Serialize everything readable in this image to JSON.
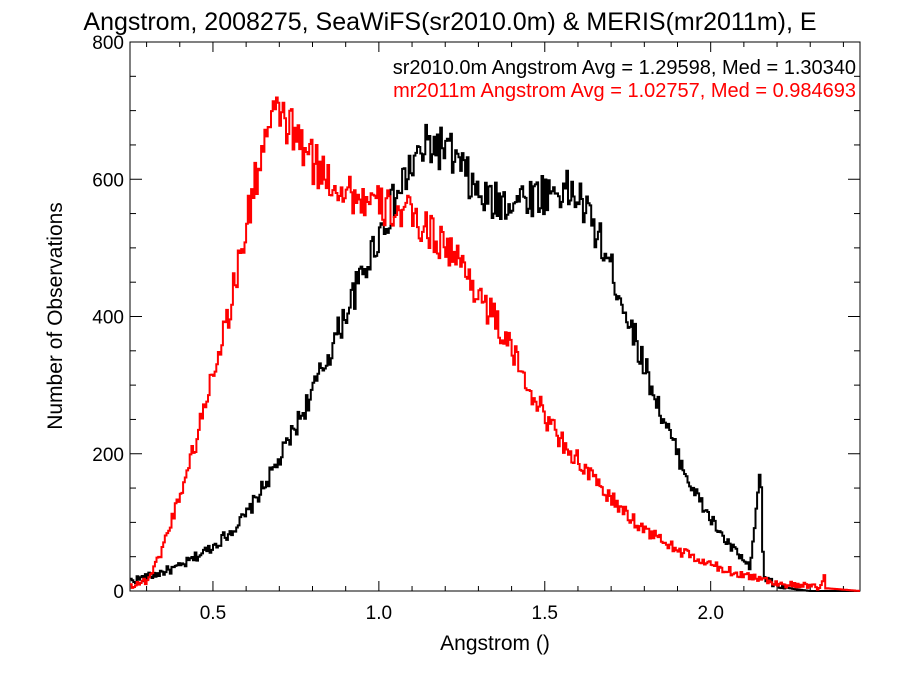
{
  "chart_data": {
    "type": "histogram",
    "title": "Angstrom, 2008275, SeaWiFS(sr2010.0m) & MERIS(mr2011m), E",
    "xlabel": "Angstrom ()",
    "ylabel": "Number of Observations",
    "xlim": [
      0.25,
      2.45
    ],
    "ylim": [
      0,
      800
    ],
    "x_ticks": [
      0.5,
      1.0,
      1.5,
      2.0
    ],
    "x_tick_labels": [
      "0.5",
      "1.0",
      "1.5",
      "2.0"
    ],
    "y_ticks": [
      0,
      200,
      400,
      600,
      800
    ],
    "y_tick_labels": [
      "0",
      "200",
      "400",
      "600",
      "800"
    ],
    "grid": false,
    "legend_position": "top-right",
    "series": [
      {
        "name": "sr2010.0m",
        "annotation": "sr2010.0m Angstrom Avg = 1.29598, Med = 1.30340",
        "color": "#000000",
        "points": [
          [
            0.25,
            15
          ],
          [
            0.3,
            20
          ],
          [
            0.35,
            28
          ],
          [
            0.4,
            35
          ],
          [
            0.45,
            50
          ],
          [
            0.5,
            65
          ],
          [
            0.55,
            85
          ],
          [
            0.6,
            110
          ],
          [
            0.65,
            150
          ],
          [
            0.7,
            190
          ],
          [
            0.75,
            240
          ],
          [
            0.8,
            290
          ],
          [
            0.85,
            345
          ],
          [
            0.9,
            405
          ],
          [
            0.95,
            460
          ],
          [
            1.0,
            520
          ],
          [
            1.05,
            570
          ],
          [
            1.1,
            620
          ],
          [
            1.15,
            650
          ],
          [
            1.2,
            645
          ],
          [
            1.25,
            615
          ],
          [
            1.3,
            575
          ],
          [
            1.35,
            565
          ],
          [
            1.4,
            570
          ],
          [
            1.45,
            575
          ],
          [
            1.5,
            580
          ],
          [
            1.55,
            585
          ],
          [
            1.6,
            575
          ],
          [
            1.65,
            530
          ],
          [
            1.7,
            470
          ],
          [
            1.75,
            400
          ],
          [
            1.8,
            330
          ],
          [
            1.85,
            260
          ],
          [
            1.9,
            200
          ],
          [
            1.95,
            145
          ],
          [
            2.0,
            105
          ],
          [
            2.05,
            70
          ],
          [
            2.1,
            45
          ],
          [
            2.12,
            30
          ],
          [
            2.15,
            180
          ],
          [
            2.16,
            20
          ],
          [
            2.2,
            8
          ],
          [
            2.25,
            3
          ],
          [
            2.3,
            0
          ],
          [
            2.45,
            0
          ]
        ]
      },
      {
        "name": "mr2011m",
        "annotation": "mr2011m Angstrom Avg = 1.02757, Med = 0.984693",
        "color": "#ff0000",
        "points": [
          [
            0.25,
            8
          ],
          [
            0.3,
            15
          ],
          [
            0.33,
            40
          ],
          [
            0.36,
            80
          ],
          [
            0.4,
            140
          ],
          [
            0.45,
            220
          ],
          [
            0.5,
            320
          ],
          [
            0.55,
            410
          ],
          [
            0.6,
            530
          ],
          [
            0.65,
            650
          ],
          [
            0.7,
            700
          ],
          [
            0.75,
            660
          ],
          [
            0.8,
            625
          ],
          [
            0.85,
            600
          ],
          [
            0.9,
            585
          ],
          [
            0.95,
            570
          ],
          [
            1.0,
            560
          ],
          [
            1.05,
            555
          ],
          [
            1.1,
            545
          ],
          [
            1.15,
            525
          ],
          [
            1.2,
            505
          ],
          [
            1.25,
            475
          ],
          [
            1.3,
            435
          ],
          [
            1.35,
            395
          ],
          [
            1.4,
            350
          ],
          [
            1.45,
            300
          ],
          [
            1.5,
            255
          ],
          [
            1.55,
            220
          ],
          [
            1.6,
            190
          ],
          [
            1.65,
            160
          ],
          [
            1.7,
            135
          ],
          [
            1.75,
            110
          ],
          [
            1.8,
            90
          ],
          [
            1.85,
            75
          ],
          [
            1.9,
            60
          ],
          [
            1.95,
            48
          ],
          [
            2.0,
            38
          ],
          [
            2.05,
            30
          ],
          [
            2.1,
            24
          ],
          [
            2.15,
            18
          ],
          [
            2.2,
            12
          ],
          [
            2.25,
            8
          ],
          [
            2.3,
            6
          ],
          [
            2.33,
            5
          ],
          [
            2.34,
            22
          ],
          [
            2.35,
            4
          ],
          [
            2.45,
            0
          ]
        ]
      }
    ]
  }
}
